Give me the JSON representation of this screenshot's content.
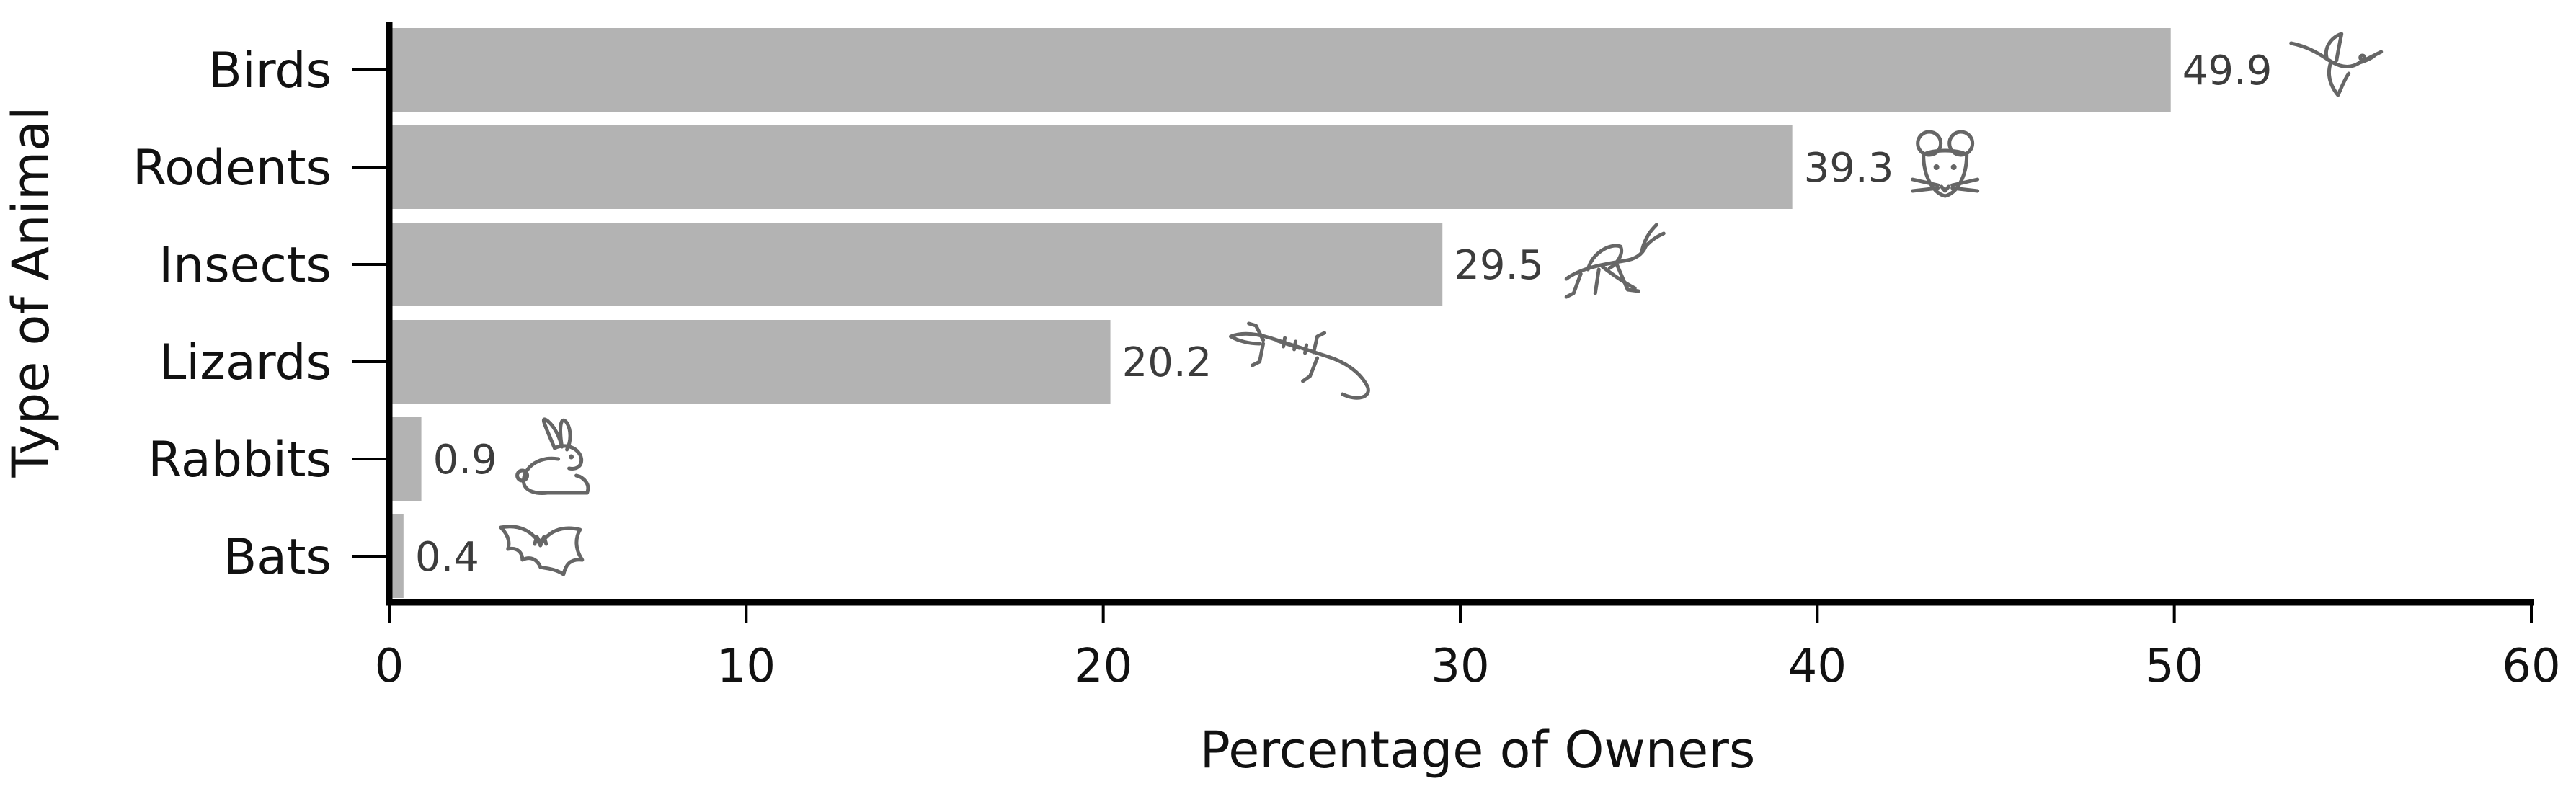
{
  "chart_data": {
    "type": "bar",
    "orientation": "horizontal",
    "categories": [
      "Birds",
      "Rodents",
      "Insects",
      "Lizards",
      "Rabbits",
      "Bats"
    ],
    "values": [
      49.9,
      39.3,
      29.5,
      20.2,
      0.9,
      0.4
    ],
    "data_labels": [
      "49.9",
      "39.3",
      "29.5",
      "20.2",
      "0.9",
      "0.4"
    ],
    "icons": [
      "hummingbird-icon",
      "mouse-icon",
      "grasshopper-icon",
      "lizard-icon",
      "rabbit-icon",
      "bat-icon"
    ],
    "xlabel": "Percentage of Owners",
    "ylabel": "Type of Animal",
    "xlim": [
      0,
      60
    ],
    "xticks": [
      0,
      10,
      20,
      30,
      40,
      50,
      60
    ],
    "grid": false,
    "legend": "none",
    "colors": {
      "bar": "#b3b3b3",
      "axis": "#000000",
      "text": "#111111",
      "value_text": "#3c3c3c",
      "icon": "#666666"
    }
  }
}
